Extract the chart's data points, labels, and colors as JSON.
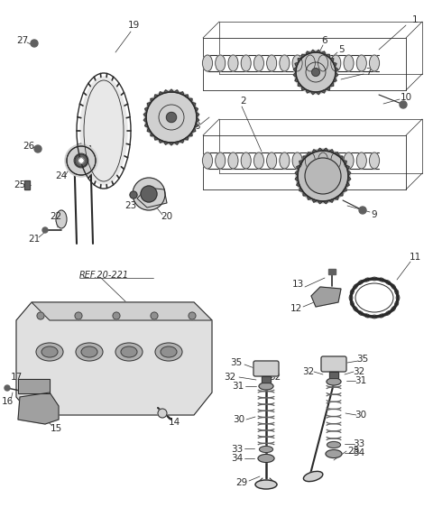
{
  "bg_color": "#ffffff",
  "lc": "#2a2a2a",
  "fig_w": 4.8,
  "fig_h": 5.73,
  "dpi": 100,
  "gray_light": "#d0d0d0",
  "gray_mid": "#a0a0a0",
  "gray_dark": "#606060"
}
